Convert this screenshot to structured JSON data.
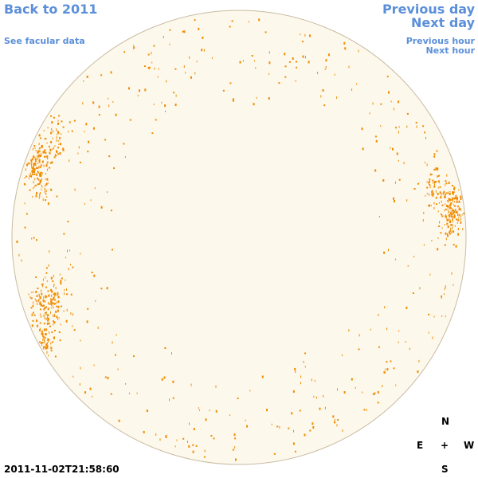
{
  "header": {
    "back_link": "Back to 2011",
    "facular_link": "See facular data",
    "previous_day": "Previous day",
    "next_day": "Next day",
    "previous_hour": "Previous hour",
    "next_hour": "Next hour"
  },
  "compass": {
    "north": "N",
    "east": "E",
    "center": "+",
    "west": "W",
    "south": "S"
  },
  "timestamp": "2011-11-02T21:58:60"
}
